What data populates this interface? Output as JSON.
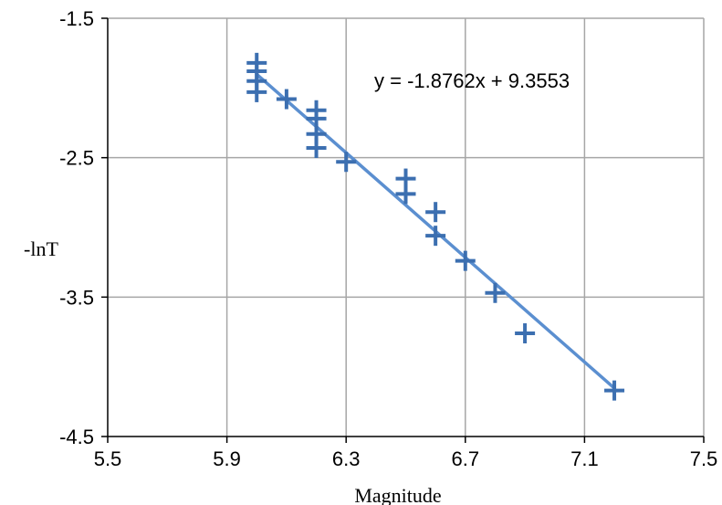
{
  "chart_data": {
    "type": "scatter",
    "title": "",
    "xlabel": "Magnitude",
    "ylabel": "-lnT",
    "xlim": [
      5.5,
      7.5
    ],
    "ylim": [
      -4.5,
      -1.5
    ],
    "xticks": [
      5.5,
      5.9,
      6.3,
      6.7,
      7.1,
      7.5
    ],
    "xtick_labels": [
      "5.5",
      "5.9",
      "6.3",
      "6.7",
      "7.1",
      "7.5"
    ],
    "yticks": [
      -1.5,
      -2.5,
      -3.5,
      -4.5
    ],
    "ytick_labels": [
      "-1.5",
      "-2.5",
      "-3.5",
      "-4.5"
    ],
    "grid": true,
    "legend": "none",
    "marker": "plus",
    "series": [
      {
        "color": "#3c6fb0",
        "points": [
          {
            "x": 6.0,
            "y": -1.82
          },
          {
            "x": 6.0,
            "y": -1.88
          },
          {
            "x": 6.0,
            "y": -1.95
          },
          {
            "x": 6.0,
            "y": -2.03
          },
          {
            "x": 6.1,
            "y": -2.08
          },
          {
            "x": 6.2,
            "y": -2.16
          },
          {
            "x": 6.2,
            "y": -2.22
          },
          {
            "x": 6.2,
            "y": -2.33
          },
          {
            "x": 6.2,
            "y": -2.43
          },
          {
            "x": 6.3,
            "y": -2.53
          },
          {
            "x": 6.5,
            "y": -2.65
          },
          {
            "x": 6.5,
            "y": -2.76
          },
          {
            "x": 6.6,
            "y": -2.89
          },
          {
            "x": 6.6,
            "y": -3.06
          },
          {
            "x": 6.7,
            "y": -3.24
          },
          {
            "x": 6.8,
            "y": -3.47
          },
          {
            "x": 6.9,
            "y": -3.76
          },
          {
            "x": 7.2,
            "y": -4.17
          }
        ]
      }
    ],
    "trendline": {
      "color": "#5b8fd0",
      "slope": -1.8762,
      "intercept": 9.3553,
      "x_range": [
        6.0,
        7.2
      ],
      "equation_label": "y = -1.8762x + 9.3553"
    }
  }
}
